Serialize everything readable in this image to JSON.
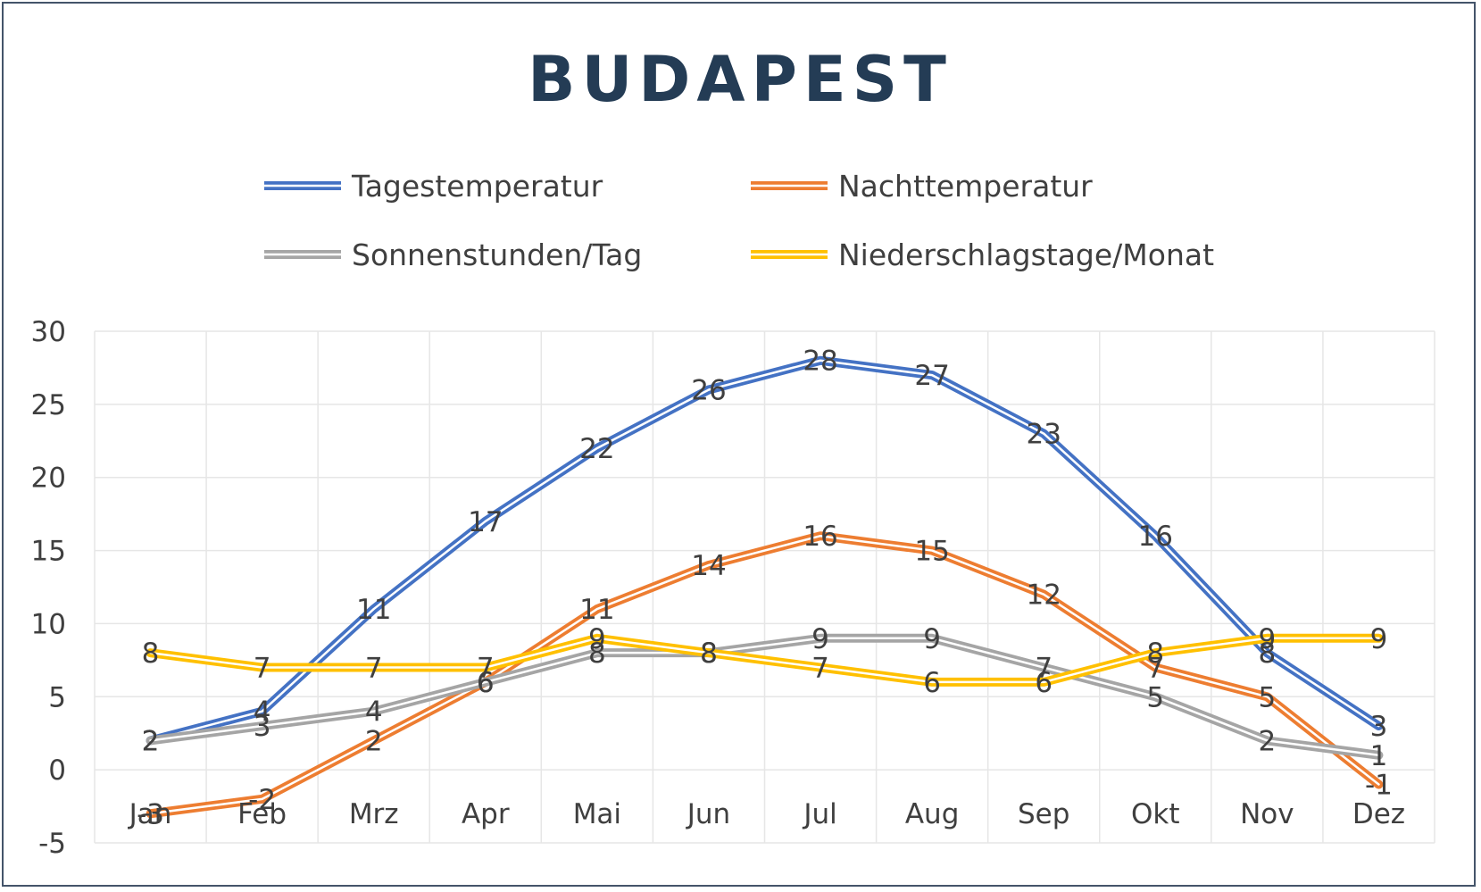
{
  "chart_data": {
    "type": "line",
    "title": "BUDAPEST",
    "categories": [
      "Jan",
      "Feb",
      "Mrz",
      "Apr",
      "Mai",
      "Jun",
      "Jul",
      "Aug",
      "Sep",
      "Okt",
      "Nov",
      "Dez"
    ],
    "ylim": [
      -5,
      30
    ],
    "yticks": [
      -5,
      0,
      5,
      10,
      15,
      20,
      25,
      30
    ],
    "grid": true,
    "legend_position": "top",
    "series": [
      {
        "name": "Tagestemperatur",
        "color": "#4472c4",
        "values": [
          2,
          4,
          11,
          17,
          22,
          26,
          28,
          27,
          23,
          16,
          8,
          3
        ]
      },
      {
        "name": "Nachttemperatur",
        "color": "#ed7d31",
        "values": [
          -3,
          -2,
          2,
          6,
          11,
          14,
          16,
          15,
          12,
          7,
          5,
          -1
        ]
      },
      {
        "name": "Sonnenstunden/Tag",
        "color": "#a5a5a5",
        "values": [
          2,
          3,
          4,
          6,
          8,
          8,
          9,
          9,
          7,
          5,
          2,
          1
        ]
      },
      {
        "name": "Niederschlagstage/Monat",
        "color": "#ffc000",
        "values": [
          8,
          7,
          7,
          7,
          9,
          8,
          7,
          6,
          6,
          8,
          9,
          9
        ]
      }
    ],
    "title_color": "#243c55",
    "grid_color": "#e6e6e6",
    "label_color": "#3f3f3f"
  }
}
